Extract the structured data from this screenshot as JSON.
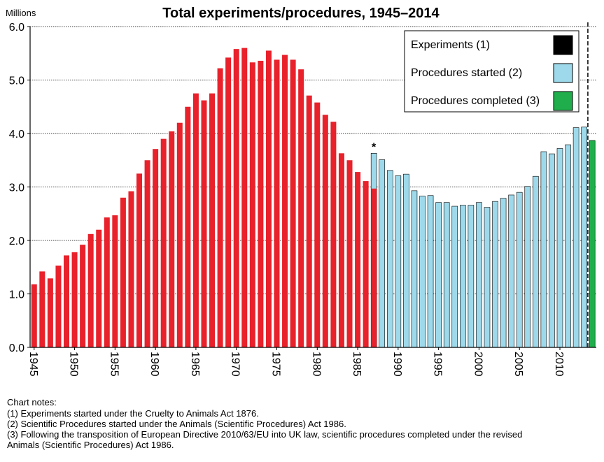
{
  "chart_data": {
    "type": "bar",
    "title": "Total experiments/procedures, 1945–2014",
    "y_label": "Millions",
    "annotation": "*",
    "categories": [
      "1945",
      null,
      null,
      null,
      null,
      "1950",
      null,
      null,
      null,
      null,
      "1955",
      null,
      null,
      null,
      null,
      "1960",
      null,
      null,
      null,
      null,
      "1965",
      null,
      null,
      null,
      null,
      "1970",
      null,
      null,
      null,
      null,
      "1975",
      null,
      null,
      null,
      null,
      "1980",
      null,
      null,
      null,
      null,
      "1985",
      null,
      null,
      null,
      null,
      "1990",
      null,
      null,
      null,
      null,
      "1995",
      null,
      null,
      null,
      null,
      "2000",
      null,
      null,
      null,
      null,
      "2005",
      null,
      null,
      null,
      null,
      "2010",
      null,
      null,
      null,
      null
    ],
    "series": [
      {
        "name": "Experiments (1)",
        "color": "#e8212b",
        "legend_color": "#000000",
        "values": [
          1.18,
          1.42,
          1.29,
          1.53,
          1.72,
          1.78,
          1.92,
          2.12,
          2.2,
          2.43,
          2.47,
          2.8,
          2.92,
          3.25,
          3.5,
          3.71,
          3.9,
          4.04,
          4.2,
          4.5,
          4.75,
          4.62,
          4.75,
          5.22,
          5.42,
          5.58,
          5.6,
          5.33,
          5.36,
          5.55,
          5.38,
          5.47,
          5.38,
          5.2,
          4.71,
          4.58,
          4.35,
          4.22,
          3.63,
          3.5,
          3.28,
          3.11,
          2.97,
          null,
          null,
          null,
          null,
          null,
          null,
          null,
          null,
          null,
          null,
          null,
          null,
          null,
          null,
          null,
          null,
          null,
          null,
          null,
          null,
          null,
          null,
          null,
          null,
          null,
          null,
          null
        ]
      },
      {
        "name": "Procedures started (2)",
        "color": "#9dd9ea",
        "values": [
          null,
          null,
          null,
          null,
          null,
          null,
          null,
          null,
          null,
          null,
          null,
          null,
          null,
          null,
          null,
          null,
          null,
          null,
          null,
          null,
          null,
          null,
          null,
          null,
          null,
          null,
          null,
          null,
          null,
          null,
          null,
          null,
          null,
          null,
          null,
          null,
          null,
          null,
          null,
          null,
          null,
          null,
          3.63,
          3.51,
          3.31,
          3.21,
          3.24,
          2.93,
          2.83,
          2.84,
          2.71,
          2.71,
          2.64,
          2.66,
          2.66,
          2.71,
          2.62,
          2.73,
          2.79,
          2.85,
          2.9,
          3.01,
          3.2,
          3.66,
          3.62,
          3.72,
          3.79,
          4.11,
          4.12,
          null
        ]
      },
      {
        "name": "Procedures completed (3)",
        "color": "#1fae4b",
        "values": [
          null,
          null,
          null,
          null,
          null,
          null,
          null,
          null,
          null,
          null,
          null,
          null,
          null,
          null,
          null,
          null,
          null,
          null,
          null,
          null,
          null,
          null,
          null,
          null,
          null,
          null,
          null,
          null,
          null,
          null,
          null,
          null,
          null,
          null,
          null,
          null,
          null,
          null,
          null,
          null,
          null,
          null,
          null,
          null,
          null,
          null,
          null,
          null,
          null,
          null,
          null,
          null,
          null,
          null,
          null,
          null,
          null,
          null,
          null,
          null,
          null,
          null,
          null,
          null,
          null,
          null,
          null,
          null,
          null,
          3.87
        ]
      }
    ],
    "ylim": [
      0,
      6
    ],
    "yticks": [
      {
        "value": 0,
        "label": "0.0"
      },
      {
        "value": 1,
        "label": "1.0"
      },
      {
        "value": 2,
        "label": "2.0"
      },
      {
        "value": 3,
        "label": "3.0"
      },
      {
        "value": 4,
        "label": "4.0"
      },
      {
        "value": 5,
        "label": "5.0"
      },
      {
        "value": 6,
        "label": "6.0"
      }
    ],
    "grid": true,
    "legend": "upper right",
    "notes": {
      "heading": "Chart notes:",
      "lines": [
        "(1) Experiments started under the Cruelty to Animals Act 1876.",
        "(2) Scientific Procedures started under the Animals (Scientific Procedures) Act 1986.",
        "(3) Following the transposition of European Directive 2010/63/EU into UK law, scientific procedures completed under the revised",
        "Animals (Scientific Procedures) Act 1986."
      ]
    }
  }
}
